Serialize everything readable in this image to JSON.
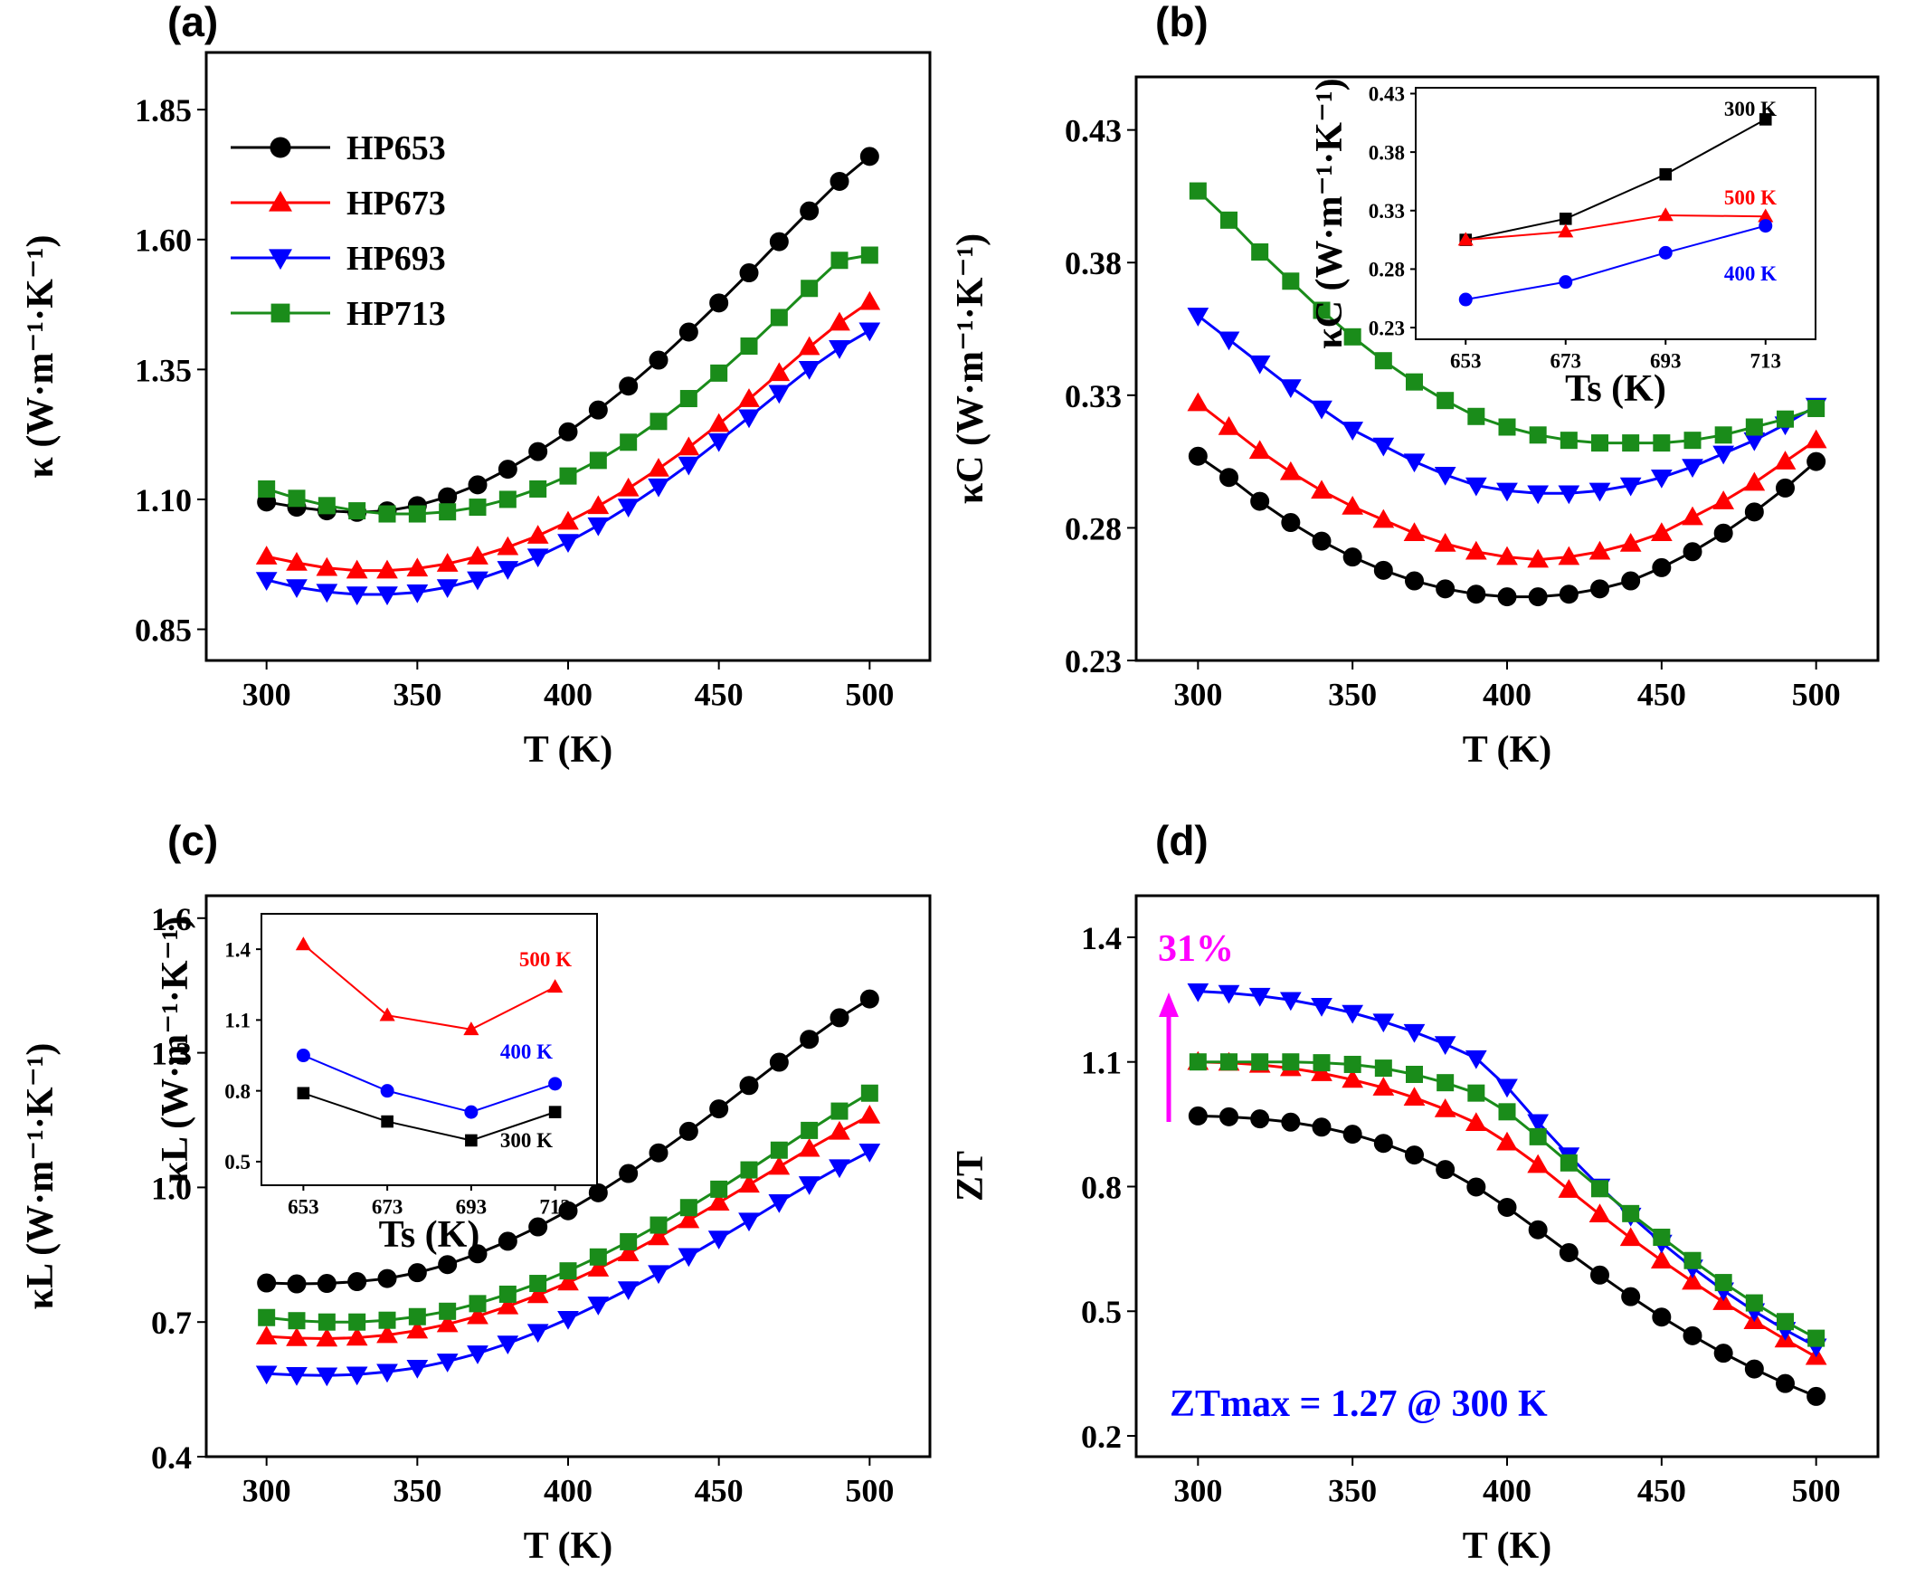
{
  "panels": [
    {
      "letter": "(a)",
      "xlabel": "T (K)",
      "ylabel": "κ (W·m⁻¹·K⁻¹)",
      "xticks": [
        "300",
        "350",
        "400",
        "450",
        "500"
      ],
      "yticks": [
        "0.85",
        "1.10",
        "1.35",
        "1.60",
        "1.85"
      ],
      "legend": [
        "HP653",
        "HP673",
        "HP693",
        "HP713"
      ]
    },
    {
      "letter": "(b)",
      "xlabel": "T (K)",
      "ylabel": "κC (W·m⁻¹·K⁻¹)",
      "xticks": [
        "300",
        "350",
        "400",
        "450",
        "500"
      ],
      "yticks": [
        "0.23",
        "0.28",
        "0.33",
        "0.38",
        "0.43"
      ],
      "inset": {
        "xlabel": "Ts (K)",
        "ylabel": "κC (W·m⁻¹·K⁻¹)",
        "xticks": [
          "653",
          "673",
          "693",
          "713"
        ],
        "yticks": [
          "0.23",
          "0.28",
          "0.33",
          "0.38",
          "0.43"
        ],
        "labels": [
          "300 K",
          "500 K",
          "400 K"
        ]
      }
    },
    {
      "letter": "(c)",
      "xlabel": "T (K)",
      "ylabel": "κL (W·m⁻¹·K⁻¹)",
      "xticks": [
        "300",
        "350",
        "400",
        "450",
        "500"
      ],
      "yticks": [
        "0.4",
        "0.7",
        "1.0",
        "1.3",
        "1.6"
      ],
      "inset": {
        "xlabel": "Ts (K)",
        "ylabel": "κL (W·m⁻¹·K⁻¹)",
        "xticks": [
          "653",
          "673",
          "693",
          "713"
        ],
        "yticks": [
          "0.5",
          "0.8",
          "1.1",
          "1.4"
        ],
        "labels": [
          "500 K",
          "400 K",
          "300 K"
        ]
      }
    },
    {
      "letter": "(d)",
      "xlabel": "T (K)",
      "ylabel": "ZT",
      "xticks": [
        "300",
        "350",
        "400",
        "450",
        "500"
      ],
      "yticks": [
        "0.2",
        "0.5",
        "0.8",
        "1.1",
        "1.4"
      ],
      "annotations": {
        "percent": "31%",
        "zt_max": "ZTmax = 1.27 @ 300 K"
      }
    }
  ],
  "chart_data": [
    {
      "type": "line",
      "panel": "(a)",
      "xlabel": "T (K)",
      "ylabel": "κ (W·m⁻¹·K⁻¹)",
      "xlim": [
        280,
        520
      ],
      "ylim": [
        0.79,
        1.96
      ],
      "x": [
        300,
        310,
        320,
        330,
        340,
        350,
        360,
        370,
        380,
        390,
        400,
        410,
        420,
        430,
        440,
        450,
        460,
        470,
        480,
        490,
        500
      ],
      "series": [
        {
          "name": "HP653",
          "color": "#000000",
          "marker": "circle",
          "values": [
            1.095,
            1.085,
            1.078,
            1.075,
            1.078,
            1.088,
            1.105,
            1.128,
            1.158,
            1.192,
            1.23,
            1.272,
            1.318,
            1.368,
            1.422,
            1.478,
            1.536,
            1.596,
            1.655,
            1.712,
            1.76
          ]
        },
        {
          "name": "HP673",
          "color": "#ff0000",
          "marker": "triangle-up",
          "values": [
            0.99,
            0.978,
            0.968,
            0.963,
            0.963,
            0.967,
            0.976,
            0.99,
            1.008,
            1.03,
            1.057,
            1.087,
            1.121,
            1.159,
            1.2,
            1.245,
            1.293,
            1.343,
            1.393,
            1.44,
            1.48
          ]
        },
        {
          "name": "HP693",
          "color": "#0000ff",
          "marker": "triangle-down",
          "values": [
            0.945,
            0.931,
            0.922,
            0.917,
            0.917,
            0.921,
            0.931,
            0.946,
            0.966,
            0.99,
            1.018,
            1.05,
            1.086,
            1.125,
            1.167,
            1.212,
            1.258,
            1.305,
            1.351,
            1.391,
            1.425
          ]
        },
        {
          "name": "HP713",
          "color": "#1a8c1a",
          "marker": "square",
          "values": [
            1.12,
            1.102,
            1.088,
            1.078,
            1.072,
            1.072,
            1.076,
            1.085,
            1.1,
            1.12,
            1.145,
            1.175,
            1.21,
            1.25,
            1.294,
            1.343,
            1.395,
            1.45,
            1.506,
            1.56,
            1.57
          ]
        }
      ]
    },
    {
      "type": "line",
      "panel": "(b)",
      "xlabel": "T (K)",
      "ylabel": "κC (W·m⁻¹·K⁻¹)",
      "xlim": [
        280,
        520
      ],
      "ylim": [
        0.23,
        0.45
      ],
      "x": [
        300,
        310,
        320,
        330,
        340,
        350,
        360,
        370,
        380,
        390,
        400,
        410,
        420,
        430,
        440,
        450,
        460,
        470,
        480,
        490,
        500
      ],
      "series": [
        {
          "name": "HP653",
          "color": "#000000",
          "marker": "circle",
          "values": [
            0.307,
            0.299,
            0.29,
            0.282,
            0.275,
            0.269,
            0.264,
            0.26,
            0.257,
            0.255,
            0.254,
            0.254,
            0.255,
            0.257,
            0.26,
            0.265,
            0.271,
            0.278,
            0.286,
            0.295,
            0.305
          ]
        },
        {
          "name": "HP673",
          "color": "#ff0000",
          "marker": "triangle-up",
          "values": [
            0.327,
            0.318,
            0.309,
            0.301,
            0.294,
            0.288,
            0.283,
            0.278,
            0.274,
            0.271,
            0.269,
            0.268,
            0.269,
            0.271,
            0.274,
            0.278,
            0.284,
            0.29,
            0.297,
            0.305,
            0.313
          ]
        },
        {
          "name": "HP693",
          "color": "#0000ff",
          "marker": "triangle-down",
          "values": [
            0.36,
            0.351,
            0.342,
            0.333,
            0.325,
            0.317,
            0.311,
            0.305,
            0.3,
            0.296,
            0.294,
            0.293,
            0.293,
            0.294,
            0.296,
            0.299,
            0.303,
            0.308,
            0.313,
            0.319,
            0.326
          ]
        },
        {
          "name": "HP713",
          "color": "#1a8c1a",
          "marker": "square",
          "values": [
            0.407,
            0.396,
            0.384,
            0.373,
            0.362,
            0.352,
            0.343,
            0.335,
            0.328,
            0.322,
            0.318,
            0.315,
            0.313,
            0.312,
            0.312,
            0.312,
            0.313,
            0.315,
            0.318,
            0.321,
            0.325
          ]
        }
      ]
    },
    {
      "type": "line",
      "panel": "(b) inset",
      "xlabel": "Ts (K)",
      "ylabel": "κC (W·m⁻¹·K⁻¹)",
      "xlim": [
        643,
        723
      ],
      "ylim": [
        0.22,
        0.435
      ],
      "x": [
        653,
        673,
        693,
        713
      ],
      "series": [
        {
          "name": "300 K",
          "color": "#000000",
          "marker": "square",
          "values": [
            0.305,
            0.323,
            0.361,
            0.408
          ]
        },
        {
          "name": "500 K",
          "color": "#ff0000",
          "marker": "triangle-up",
          "values": [
            0.305,
            0.312,
            0.326,
            0.325
          ]
        },
        {
          "name": "400 K",
          "color": "#0000ff",
          "marker": "circle",
          "values": [
            0.254,
            0.269,
            0.294,
            0.317
          ]
        }
      ]
    },
    {
      "type": "line",
      "panel": "(c)",
      "xlabel": "T (K)",
      "ylabel": "κL (W·m⁻¹·K⁻¹)",
      "xlim": [
        280,
        520
      ],
      "ylim": [
        0.4,
        1.65
      ],
      "x": [
        300,
        310,
        320,
        330,
        340,
        350,
        360,
        370,
        380,
        390,
        400,
        410,
        420,
        430,
        440,
        450,
        460,
        470,
        480,
        490,
        500
      ],
      "series": [
        {
          "name": "HP653",
          "color": "#000000",
          "marker": "circle",
          "values": [
            0.787,
            0.785,
            0.786,
            0.79,
            0.797,
            0.81,
            0.828,
            0.852,
            0.88,
            0.912,
            0.948,
            0.988,
            1.031,
            1.077,
            1.125,
            1.175,
            1.227,
            1.279,
            1.33,
            1.378,
            1.42
          ]
        },
        {
          "name": "HP673",
          "color": "#ff0000",
          "marker": "triangle-up",
          "values": [
            0.668,
            0.664,
            0.663,
            0.665,
            0.671,
            0.681,
            0.695,
            0.713,
            0.735,
            0.76,
            0.788,
            0.819,
            0.853,
            0.889,
            0.927,
            0.966,
            1.006,
            1.046,
            1.086,
            1.124,
            1.16
          ]
        },
        {
          "name": "HP693",
          "color": "#0000ff",
          "marker": "triangle-down",
          "values": [
            0.585,
            0.582,
            0.581,
            0.583,
            0.589,
            0.598,
            0.612,
            0.63,
            0.652,
            0.678,
            0.707,
            0.739,
            0.773,
            0.809,
            0.847,
            0.886,
            0.926,
            0.967,
            1.007,
            1.045,
            1.08
          ]
        },
        {
          "name": "HP713",
          "color": "#1a8c1a",
          "marker": "square",
          "values": [
            0.71,
            0.703,
            0.7,
            0.7,
            0.704,
            0.712,
            0.724,
            0.741,
            0.762,
            0.786,
            0.814,
            0.845,
            0.879,
            0.916,
            0.955,
            0.996,
            1.039,
            1.083,
            1.127,
            1.17,
            1.21
          ]
        }
      ]
    },
    {
      "type": "line",
      "panel": "(c) inset",
      "xlabel": "Ts (K)",
      "ylabel": "κL (W·m⁻¹·K⁻¹)",
      "xlim": [
        643,
        723
      ],
      "ylim": [
        0.4,
        1.55
      ],
      "x": [
        653,
        673,
        693,
        713
      ],
      "series": [
        {
          "name": "500 K",
          "color": "#ff0000",
          "marker": "triangle-up",
          "values": [
            1.42,
            1.12,
            1.06,
            1.24
          ]
        },
        {
          "name": "400 K",
          "color": "#0000ff",
          "marker": "circle",
          "values": [
            0.95,
            0.8,
            0.71,
            0.83
          ]
        },
        {
          "name": "300 K",
          "color": "#000000",
          "marker": "square",
          "values": [
            0.79,
            0.67,
            0.59,
            0.71
          ]
        }
      ]
    },
    {
      "type": "line",
      "panel": "(d)",
      "xlabel": "T (K)",
      "ylabel": "ZT",
      "xlim": [
        280,
        520
      ],
      "ylim": [
        0.15,
        1.5
      ],
      "x": [
        300,
        310,
        320,
        330,
        340,
        350,
        360,
        370,
        380,
        390,
        400,
        410,
        420,
        430,
        440,
        450,
        460,
        470,
        480,
        490,
        500
      ],
      "series": [
        {
          "name": "HP653",
          "color": "#000000",
          "marker": "circle",
          "values": [
            0.97,
            0.968,
            0.963,
            0.955,
            0.943,
            0.926,
            0.904,
            0.876,
            0.841,
            0.799,
            0.75,
            0.696,
            0.641,
            0.587,
            0.535,
            0.486,
            0.441,
            0.399,
            0.361,
            0.326,
            0.295
          ]
        },
        {
          "name": "HP673",
          "color": "#ff0000",
          "marker": "triangle-up",
          "values": [
            1.1,
            1.098,
            1.093,
            1.085,
            1.073,
            1.057,
            1.038,
            1.014,
            0.986,
            0.953,
            0.906,
            0.852,
            0.792,
            0.733,
            0.676,
            0.622,
            0.571,
            0.522,
            0.476,
            0.432,
            0.39
          ]
        },
        {
          "name": "HP693",
          "color": "#0000ff",
          "marker": "triangle-down",
          "values": [
            1.27,
            1.266,
            1.259,
            1.249,
            1.235,
            1.218,
            1.197,
            1.172,
            1.143,
            1.109,
            1.04,
            0.955,
            0.875,
            0.8,
            0.73,
            0.665,
            0.605,
            0.55,
            0.5,
            0.455,
            0.415
          ]
        },
        {
          "name": "HP713",
          "color": "#1a8c1a",
          "marker": "square",
          "values": [
            1.1,
            1.1,
            1.1,
            1.1,
            1.098,
            1.094,
            1.085,
            1.07,
            1.05,
            1.025,
            0.98,
            0.92,
            0.857,
            0.795,
            0.735,
            0.678,
            0.622,
            0.569,
            0.52,
            0.475,
            0.435
          ]
        }
      ]
    }
  ]
}
